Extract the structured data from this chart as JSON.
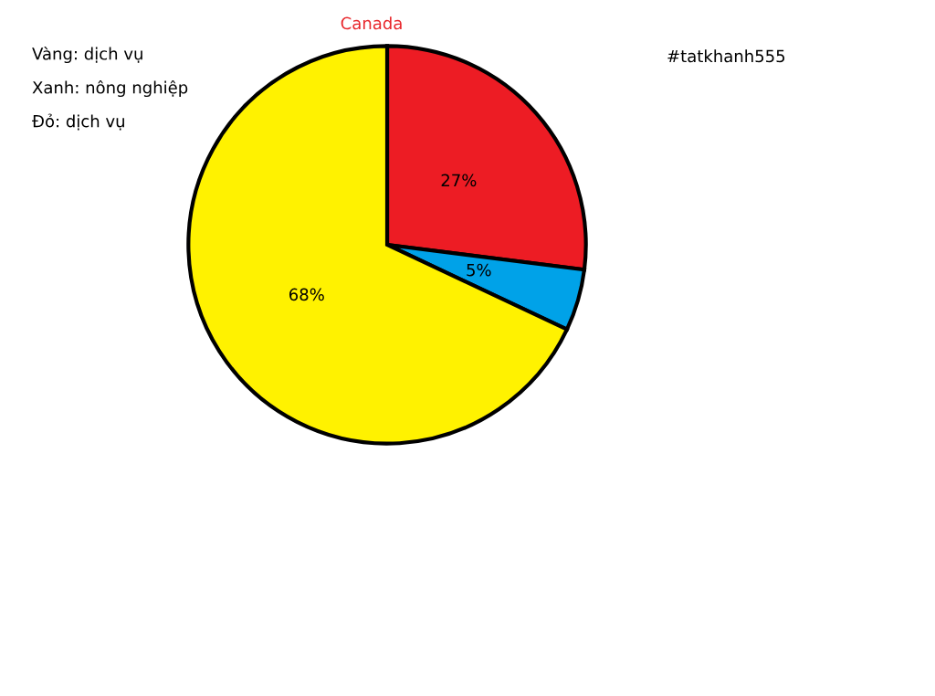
{
  "chart_data": {
    "type": "pie",
    "title": "Canada",
    "categories": [
      null,
      null,
      null
    ],
    "values": [
      27,
      5,
      68
    ],
    "colors": [
      "#ed1c24",
      "#00a2e8",
      "#fff200"
    ],
    "value_labels": [
      "27%",
      "5%",
      "68%"
    ],
    "annotations": [
      "Vàng: dịch vụ",
      "Xanh: nông nghiệp",
      "Đỏ: dịch vụ",
      "#tatkhanh555"
    ]
  }
}
